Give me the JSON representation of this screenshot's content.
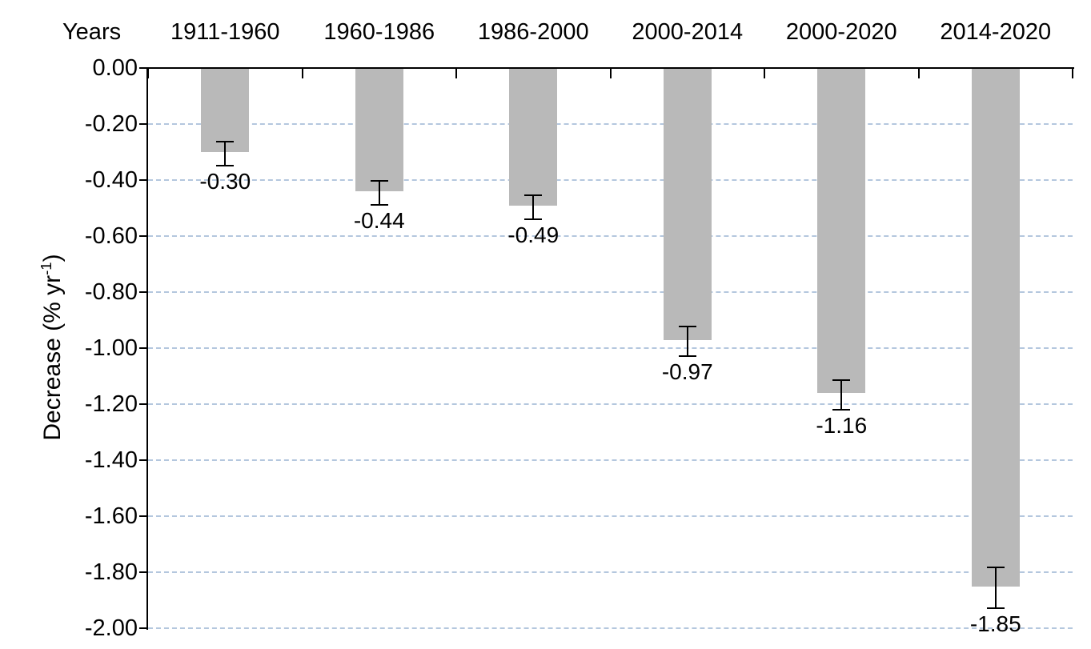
{
  "chart_data": {
    "type": "bar",
    "title": "",
    "xlabel": "Years",
    "ylabel": "Decrease (% yr⁻¹)",
    "ylabel_parts": {
      "main": "Decrease (% yr",
      "sup": "-1",
      "end": ")"
    },
    "categories": [
      "1911-1960",
      "1960-1986",
      "1986-2000",
      "2000-2014",
      "2000-2020",
      "2014-2020"
    ],
    "values": [
      -0.3,
      -0.44,
      -0.49,
      -0.97,
      -1.16,
      -1.85
    ],
    "value_labels": [
      "-0.30",
      "-0.44",
      "-0.49",
      "-0.97",
      "-1.16",
      "-1.85"
    ],
    "errors": [
      0.04,
      0.04,
      0.04,
      0.05,
      0.05,
      0.07
    ],
    "ylim": [
      -2.0,
      0.0
    ],
    "y_ticks": [
      0.0,
      -0.2,
      -0.4,
      -0.6,
      -0.8,
      -1.0,
      -1.2,
      -1.4,
      -1.6,
      -1.8,
      -2.0
    ],
    "y_tick_labels": [
      "0.00",
      "-0.20",
      "-0.40",
      "-0.60",
      "-0.80",
      "-1.00",
      "-1.20",
      "-1.40",
      "-1.60",
      "-1.80",
      "-2.00"
    ],
    "grid": true,
    "grid_style": "dashed",
    "legend": "none",
    "bar_color": "#b9b9b9",
    "grid_color": "#b4c7de",
    "axis_color": "#000000",
    "text_color": "#000000"
  }
}
